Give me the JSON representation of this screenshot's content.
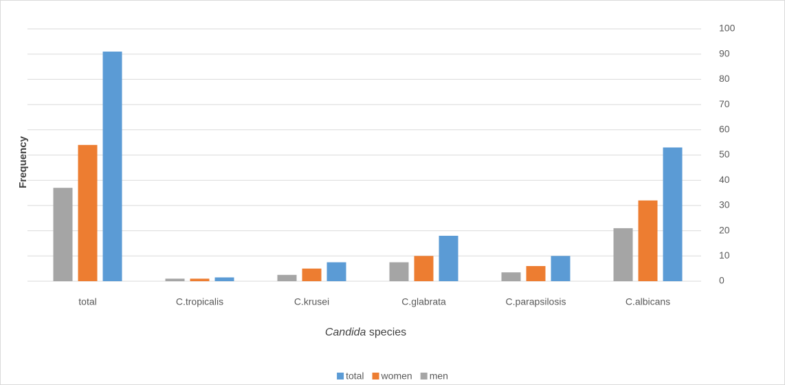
{
  "chart_data": {
    "type": "bar",
    "ylabel": "Frequency",
    "xlabel": [
      "Candida",
      "species"
    ],
    "categories": [
      "total",
      "C.tropicalis",
      "C.krusei",
      "C.glabrata",
      "C.parapsilosis",
      "C.albicans"
    ],
    "series": [
      {
        "name": "total",
        "color": "#5b9bd5",
        "values": [
          91,
          1.5,
          7.5,
          18,
          10,
          53
        ]
      },
      {
        "name": "women",
        "color": "#ed7d31",
        "values": [
          54,
          1,
          5,
          10,
          6,
          32
        ]
      },
      {
        "name": "men",
        "color": "#a5a5a5",
        "values": [
          37,
          1,
          2.5,
          7.5,
          3.5,
          21
        ]
      }
    ],
    "ylim": [
      0,
      100
    ],
    "yticks": [
      0,
      10,
      20,
      30,
      40,
      50,
      60,
      70,
      80,
      90,
      100
    ],
    "grid": true,
    "legend": "bottom"
  }
}
